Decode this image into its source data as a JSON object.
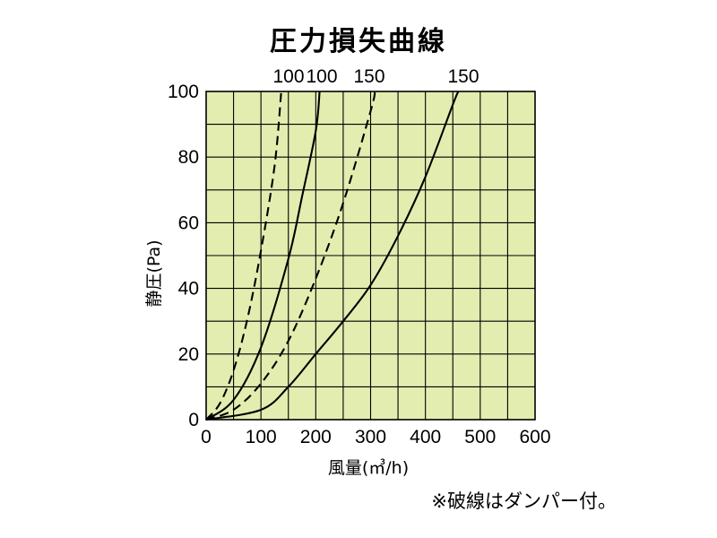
{
  "chart_data": {
    "type": "line",
    "title": "圧力損失曲線",
    "xlabel": "風量(㎥/h)",
    "ylabel": "静圧(Pa)",
    "xlim": [
      0,
      600
    ],
    "ylim": [
      0,
      100
    ],
    "xticks": [
      "0",
      "100",
      "200",
      "300",
      "400",
      "500",
      "600"
    ],
    "yticks": [
      "0",
      "20",
      "40",
      "60",
      "80",
      "100"
    ],
    "grid": true,
    "colors": {
      "plot_background": "#e3edb0",
      "grid": "#000000",
      "curve": "#000000"
    },
    "series": [
      {
        "label": "100",
        "style": "dashed",
        "points": [
          [
            0,
            0
          ],
          [
            25,
            4.9
          ],
          [
            50,
            15
          ],
          [
            75,
            30.5
          ],
          [
            100,
            51.5
          ],
          [
            125,
            77.5
          ],
          [
            137,
            100
          ]
        ]
      },
      {
        "label": "100",
        "style": "solid",
        "points": [
          [
            0,
            0
          ],
          [
            50,
            6
          ],
          [
            100,
            22
          ],
          [
            150,
            49
          ],
          [
            175,
            68
          ],
          [
            200,
            88
          ],
          [
            207,
            100
          ]
        ]
      },
      {
        "label": "150",
        "style": "dashed",
        "points": [
          [
            0,
            0
          ],
          [
            50,
            3
          ],
          [
            100,
            11
          ],
          [
            150,
            24
          ],
          [
            200,
            43
          ],
          [
            250,
            66
          ],
          [
            300,
            94
          ],
          [
            308,
            100
          ]
        ]
      },
      {
        "label": "150",
        "style": "solid",
        "points": [
          [
            0,
            0
          ],
          [
            100,
            3
          ],
          [
            150,
            10
          ],
          [
            200,
            20
          ],
          [
            250,
            30
          ],
          [
            300,
            41
          ],
          [
            350,
            56
          ],
          [
            400,
            74
          ],
          [
            450,
            96
          ],
          [
            460,
            100
          ]
        ]
      }
    ],
    "note": "※破線はダンパー付。"
  }
}
